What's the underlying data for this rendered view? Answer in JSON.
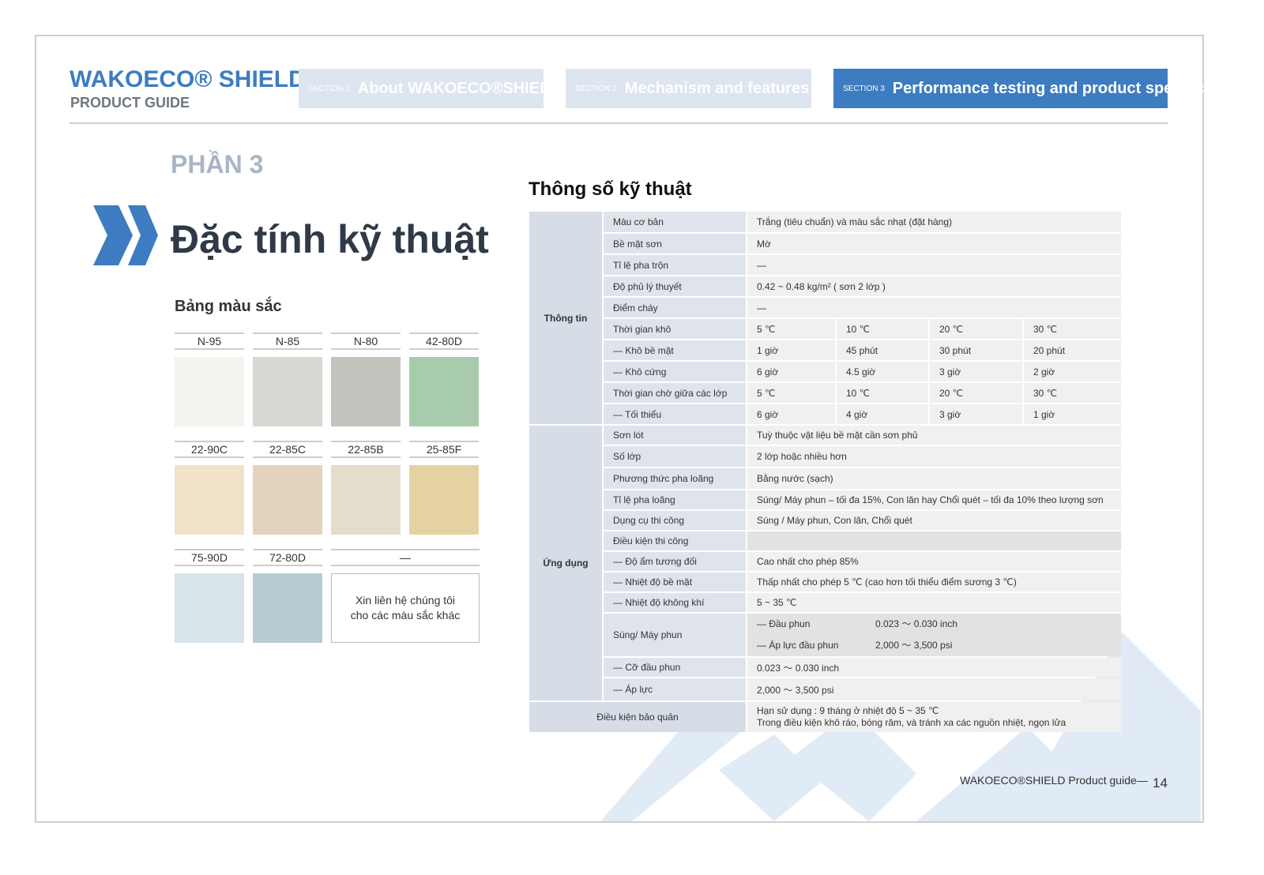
{
  "header": {
    "brand": "WAKOECO® SHIELD",
    "subtitle": "PRODUCT GUIDE",
    "tabs": [
      {
        "num": "SECTION 1",
        "label": "About WAKOECO®SHIELD"
      },
      {
        "num": "SECTION 2",
        "label": "Mechanism and features"
      },
      {
        "num": "SECTION 3",
        "label": "Performance testing and product specifications"
      }
    ]
  },
  "part": "PHẦN 3",
  "heading": "Đặc tính kỹ thuật",
  "palette": {
    "title": "Bảng màu sắc",
    "swatches": [
      {
        "code": "N-95",
        "color": "#f1f4ef"
      },
      {
        "code": "N-85",
        "color": "#d9d7d1"
      },
      {
        "code": "N-80",
        "color": "#c1c3bd"
      },
      {
        "code": "42-80D",
        "color": "#a9cbad"
      },
      {
        "code": "22-90C",
        "color": "#f1e2ca"
      },
      {
        "code": "22-85C",
        "color": "#e3d2bd"
      },
      {
        "code": "22-85B",
        "color": "#e5ddcc"
      },
      {
        "code": "25-85F",
        "color": "#e5d2a3"
      },
      {
        "code": "75-90D",
        "color": "#d8e3ea"
      },
      {
        "code": "72-80D",
        "color": "#b7cbd3"
      },
      {
        "code": "—",
        "note": "Xin liên hệ chúng tôi cho các màu sắc khác"
      }
    ]
  },
  "specs": {
    "title": "Thông số kỹ thuật",
    "groups": [
      {
        "name": "Thông tin",
        "rows": [
          {
            "label": "Màu cơ bản",
            "values": [
              "Trắng (tiêu chuẩn) và màu sắc nhạt (đặt hàng)"
            ]
          },
          {
            "label": "Bề mặt sơn",
            "values": [
              "Mờ"
            ]
          },
          {
            "label": "Tỉ lệ pha trộn",
            "values": [
              "—"
            ]
          },
          {
            "label": "Độ phủ lý thuyết",
            "values": [
              "0.42 ~ 0.48 kg/m² ( sơn 2 lớp )"
            ]
          },
          {
            "label": "Điểm cháy",
            "values": [
              "—"
            ]
          },
          {
            "label": "Thời gian khô",
            "values": [
              "5 ℃",
              "10 ℃",
              "20 ℃",
              "30 ℃"
            ]
          },
          {
            "label": "— Khô bề mặt",
            "values": [
              "1 giờ",
              "45 phút",
              "30 phút",
              "20 phút"
            ]
          },
          {
            "label": "— Khô cứng",
            "values": [
              "6 giờ",
              "4.5 giờ",
              "3 giờ",
              "2 giờ"
            ]
          },
          {
            "label": "Thời gian chờ giữa các lớp",
            "values": [
              "5 ℃",
              "10 ℃",
              "20 ℃",
              "30 ℃"
            ]
          },
          {
            "label": "— Tối thiểu",
            "values": [
              "6 giờ",
              "4 giờ",
              "3 giờ",
              "1 giờ"
            ]
          }
        ]
      },
      {
        "name": "Ứng dụng",
        "rows": [
          {
            "label": "Sơn lót",
            "values": [
              "Tuỳ thuộc vật liệu bề mặt cần sơn phủ"
            ]
          },
          {
            "label": "Số lớp",
            "values": [
              "2 lớp hoặc nhiều hơn"
            ]
          },
          {
            "label": "Phương thức pha loãng",
            "values": [
              "Bằng nước (sạch)"
            ]
          },
          {
            "label": "Tỉ lệ pha loãng",
            "values": [
              "Súng/ Máy phun – tối đa 15%, Con lăn hay Chổi quét – tối đa 10% theo lượng sơn"
            ]
          },
          {
            "label": "Dụng cụ thi công",
            "values": [
              "Súng / Máy phun, Con lăn, Chổi quét"
            ]
          },
          {
            "label": "Điều kiện thi công",
            "values": []
          },
          {
            "label": "— Độ ẩm tương đối",
            "values": [
              "Cao nhất cho phép 85%"
            ]
          },
          {
            "label": "— Nhiệt độ bề mặt",
            "values": [
              "Thấp nhất cho phép 5 ℃ (cao hơn tối thiểu điểm sương 3 ℃)"
            ]
          },
          {
            "label": "— Nhiệt độ không khí",
            "values": [
              "5 ~ 35 ℃"
            ]
          },
          {
            "label": "Súng/ Máy phun",
            "lines": [
              [
                "— Đầu phun",
                "0.023 ～ 0.030 inch"
              ],
              [
                "— Áp lực đầu phun",
                "2,000 ～ 3,500 psi"
              ]
            ]
          },
          {
            "label": "— Cỡ đầu phun",
            "values": [
              "0.023 ～ 0.030 inch"
            ]
          },
          {
            "label": "— Áp lực",
            "values": [
              "2,000 ～ 3,500 psi"
            ]
          }
        ]
      }
    ],
    "storage": {
      "label": "Điều kiện bảo quản",
      "values": [
        "Hạn sử dụng : 9 tháng ở nhiệt độ 5 ~ 35 ℃",
        "Trong điều kiện khô ráo, bóng râm, và tránh xa các nguồn nhiệt, ngọn lửa"
      ]
    }
  },
  "footer": {
    "text": "WAKOECO®SHIELD Product guide—",
    "page": "14"
  }
}
